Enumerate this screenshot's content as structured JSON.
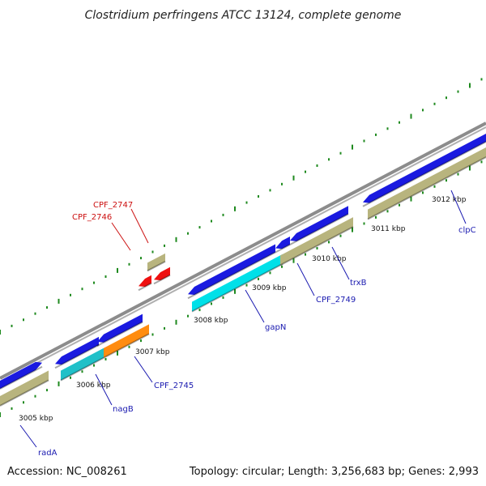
{
  "title": "Clostridium perfringens ATCC 13124, complete genome",
  "footer": {
    "accession": "Accession: NC_008261",
    "summary": "Topology: circular; Length: 3,256,683 bp; Genes: 2,993"
  },
  "colors": {
    "backbone": "#8c8c8c",
    "cds_blue": "#1a1ae0",
    "cds_khaki": "#b8b47e",
    "cds_cyan": "#00e0e8",
    "cds_teal": "#20c0c8",
    "cds_orange": "#ff8c10",
    "cds_red": "#ee1010",
    "tick_green": "#1f8a1f",
    "label_blue": "#1a1ab0",
    "label_red": "#cc1010"
  },
  "scale_labels": [
    "3005 kbp",
    "3006 kbp",
    "3007 kbp",
    "3008 kbp",
    "3009 kbp",
    "3010 kbp",
    "3011 kbp",
    "3012 kbp"
  ],
  "gene_labels": {
    "radA": "radA",
    "nagB": "nagB",
    "cpf2745": "CPF_2745",
    "gapN": "gapN",
    "cpf2749": "CPF_2749",
    "trxB": "trxB",
    "clpC": "clpC",
    "cpf2746": "CPF_2746",
    "cpf2747": "CPF_2747"
  }
}
